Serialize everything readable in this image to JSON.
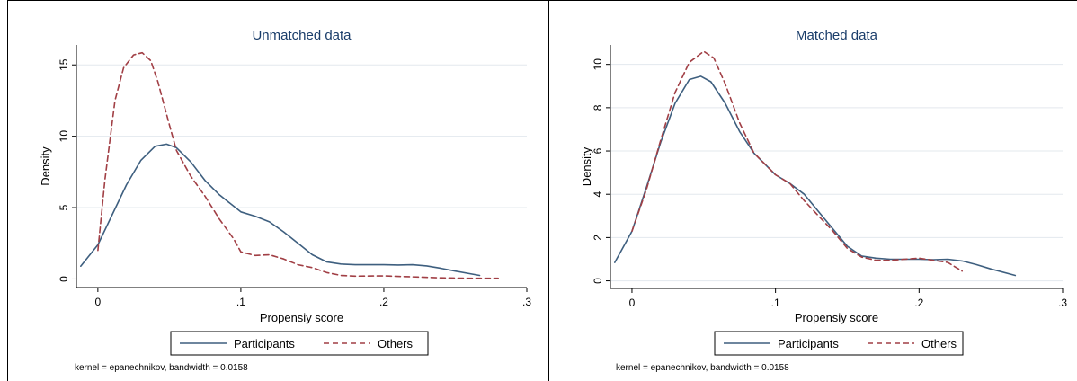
{
  "colors": {
    "participants": "#3e5f7f",
    "others": "#a13f45",
    "grid": "#e3e8ee",
    "title": "#1a3d6a"
  },
  "chart_data": [
    {
      "type": "line",
      "title": "Unmatched data",
      "xlabel": "Propensiy score",
      "ylabel": "Density",
      "xlim": [
        -0.015,
        0.3
      ],
      "ylim": [
        -0.6,
        16.4
      ],
      "x_ticks": [
        0,
        0.1,
        0.2,
        0.3
      ],
      "x_tick_labels": [
        "0",
        ".1",
        ".2",
        ".3"
      ],
      "y_ticks": [
        0,
        5,
        10,
        15
      ],
      "y_tick_labels": [
        "0",
        "5",
        "10",
        "15"
      ],
      "grid": true,
      "legend_position": "bottom",
      "note": "kernel = epanechnikov, bandwidth = 0.0158",
      "series": [
        {
          "name": "Participants",
          "style": "solid",
          "x": [
            -0.012,
            0.0,
            0.01,
            0.02,
            0.03,
            0.04,
            0.048,
            0.055,
            0.065,
            0.075,
            0.085,
            0.1,
            0.11,
            0.12,
            0.13,
            0.14,
            0.15,
            0.16,
            0.17,
            0.18,
            0.2,
            0.21,
            0.22,
            0.23,
            0.24,
            0.25,
            0.267
          ],
          "y": [
            0.9,
            2.4,
            4.5,
            6.6,
            8.3,
            9.3,
            9.45,
            9.2,
            8.2,
            6.9,
            5.9,
            4.7,
            4.4,
            4.0,
            3.3,
            2.5,
            1.7,
            1.2,
            1.05,
            1.0,
            1.0,
            0.98,
            1.0,
            0.92,
            0.75,
            0.55,
            0.25
          ]
        },
        {
          "name": "Others",
          "style": "dash",
          "x": [
            0.0,
            0.005,
            0.012,
            0.018,
            0.025,
            0.031,
            0.037,
            0.042,
            0.05,
            0.055,
            0.065,
            0.075,
            0.085,
            0.095,
            0.1,
            0.11,
            0.12,
            0.13,
            0.14,
            0.15,
            0.16,
            0.17,
            0.18,
            0.2,
            0.22,
            0.24,
            0.26,
            0.28
          ],
          "y": [
            2.0,
            7.0,
            12.5,
            14.8,
            15.7,
            15.85,
            15.3,
            13.8,
            10.8,
            9.0,
            7.2,
            5.8,
            4.2,
            2.8,
            1.9,
            1.65,
            1.7,
            1.4,
            1.0,
            0.8,
            0.45,
            0.25,
            0.2,
            0.22,
            0.15,
            0.08,
            0.05,
            0.05
          ]
        }
      ]
    },
    {
      "type": "line",
      "title": "Matched data",
      "xlabel": "Propensiy score",
      "ylabel": "Density",
      "xlim": [
        -0.015,
        0.3
      ],
      "ylim": [
        -0.35,
        10.9
      ],
      "x_ticks": [
        0,
        0.1,
        0.2,
        0.3
      ],
      "x_tick_labels": [
        "0",
        ".1",
        ".2",
        ".3"
      ],
      "y_ticks": [
        0,
        2,
        4,
        6,
        8,
        10
      ],
      "y_tick_labels": [
        "0",
        "2",
        "4",
        "6",
        "8",
        "10"
      ],
      "grid": true,
      "legend_position": "bottom",
      "note": "kernel = epanechnikov, bandwidth = 0.0158",
      "series": [
        {
          "name": "Participants",
          "style": "solid",
          "x": [
            -0.012,
            0.0,
            0.01,
            0.02,
            0.03,
            0.04,
            0.048,
            0.055,
            0.065,
            0.075,
            0.085,
            0.1,
            0.11,
            0.12,
            0.13,
            0.14,
            0.15,
            0.16,
            0.17,
            0.18,
            0.2,
            0.21,
            0.22,
            0.23,
            0.24,
            0.25,
            0.267
          ],
          "y": [
            0.85,
            2.3,
            4.3,
            6.4,
            8.2,
            9.3,
            9.45,
            9.2,
            8.2,
            6.9,
            5.9,
            4.9,
            4.5,
            4.0,
            3.2,
            2.4,
            1.6,
            1.15,
            1.05,
            1.0,
            1.0,
            0.98,
            1.0,
            0.92,
            0.75,
            0.55,
            0.25
          ]
        },
        {
          "name": "Others",
          "style": "dash",
          "x": [
            0.0,
            0.01,
            0.02,
            0.03,
            0.04,
            0.05,
            0.057,
            0.065,
            0.075,
            0.085,
            0.1,
            0.11,
            0.12,
            0.13,
            0.14,
            0.15,
            0.16,
            0.17,
            0.18,
            0.2,
            0.21,
            0.22,
            0.23
          ],
          "y": [
            2.3,
            4.2,
            6.5,
            8.7,
            10.1,
            10.6,
            10.3,
            9.1,
            7.3,
            5.9,
            4.9,
            4.5,
            3.7,
            3.0,
            2.3,
            1.5,
            1.1,
            0.95,
            0.95,
            1.05,
            0.95,
            0.85,
            0.45
          ]
        }
      ]
    }
  ]
}
